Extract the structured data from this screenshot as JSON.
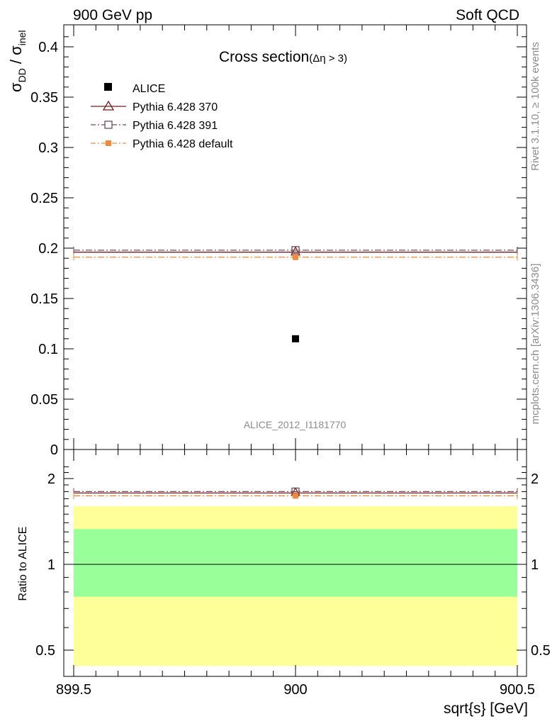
{
  "header": {
    "left": "900 GeV pp",
    "right": "Soft QCD"
  },
  "side_labels": {
    "upper": "Rivet 3.1.10, ≥ 100k events",
    "lower": "mcplots.cern.ch [arXiv:1306.3436]"
  },
  "chart_data": [
    {
      "type": "scatter",
      "panel": "main",
      "title": "Cross section",
      "title_sub": "(Δη > 3)",
      "ylabel": "σDD / σinel",
      "ylabel_main": "σ",
      "ylabel_sub1": "DD",
      "ylabel_mid": " / σ",
      "ylabel_sub2": "inel",
      "analysis_tag": "ALICE_2012_I1181770",
      "xlim": [
        899.5,
        900.5
      ],
      "ylim": [
        0,
        0.42
      ],
      "y_ticks": [
        0,
        0.05,
        0.1,
        0.15,
        0.2,
        0.25,
        0.3,
        0.35,
        0.4
      ],
      "y_tick_labels": [
        "0",
        "0.05",
        "0.1",
        "0.15",
        "0.2",
        "0.25",
        "0.3",
        "0.35",
        "0.4"
      ],
      "series": [
        {
          "name": "ALICE",
          "style": "data",
          "x": 900,
          "value": 0.11,
          "color": "#000000"
        },
        {
          "name": "Pythia 6.428 370",
          "style": "solid",
          "marker": "triangle",
          "value": 0.196,
          "color": "#7b1b1b"
        },
        {
          "name": "Pythia 6.428 391",
          "style": "dashdot",
          "marker": "square",
          "value": 0.198,
          "color": "#6e4a5a"
        },
        {
          "name": "Pythia 6.428 default",
          "style": "dashdot",
          "marker": "filled-square",
          "value": 0.191,
          "color": "#f28a3a"
        }
      ]
    },
    {
      "type": "scatter",
      "panel": "ratio",
      "ylabel": "Ratio to ALICE",
      "xlabel": "sqrt{s} [GeV]",
      "xlim": [
        899.5,
        900.5
      ],
      "ylim": [
        0.42,
        2.3
      ],
      "x_ticks": [
        899.5,
        900,
        900.5
      ],
      "x_tick_labels": [
        "899.5",
        "900",
        "900.5"
      ],
      "y_ticks": [
        0.5,
        1,
        2
      ],
      "y_tick_labels": [
        "0.5",
        "1",
        "2"
      ],
      "bands": [
        {
          "name": "outer",
          "low": 0.44,
          "high": 1.6,
          "color": "#ffff99"
        },
        {
          "name": "inner",
          "low": 0.77,
          "high": 1.33,
          "color": "#99ff99"
        }
      ],
      "reference": 1,
      "series": [
        {
          "name": "Pythia 6.428 370",
          "value": 1.78,
          "color": "#7b1b1b"
        },
        {
          "name": "Pythia 6.428 391",
          "value": 1.8,
          "color": "#6e4a5a"
        },
        {
          "name": "Pythia 6.428 default",
          "value": 1.74,
          "color": "#f28a3a"
        }
      ]
    }
  ]
}
